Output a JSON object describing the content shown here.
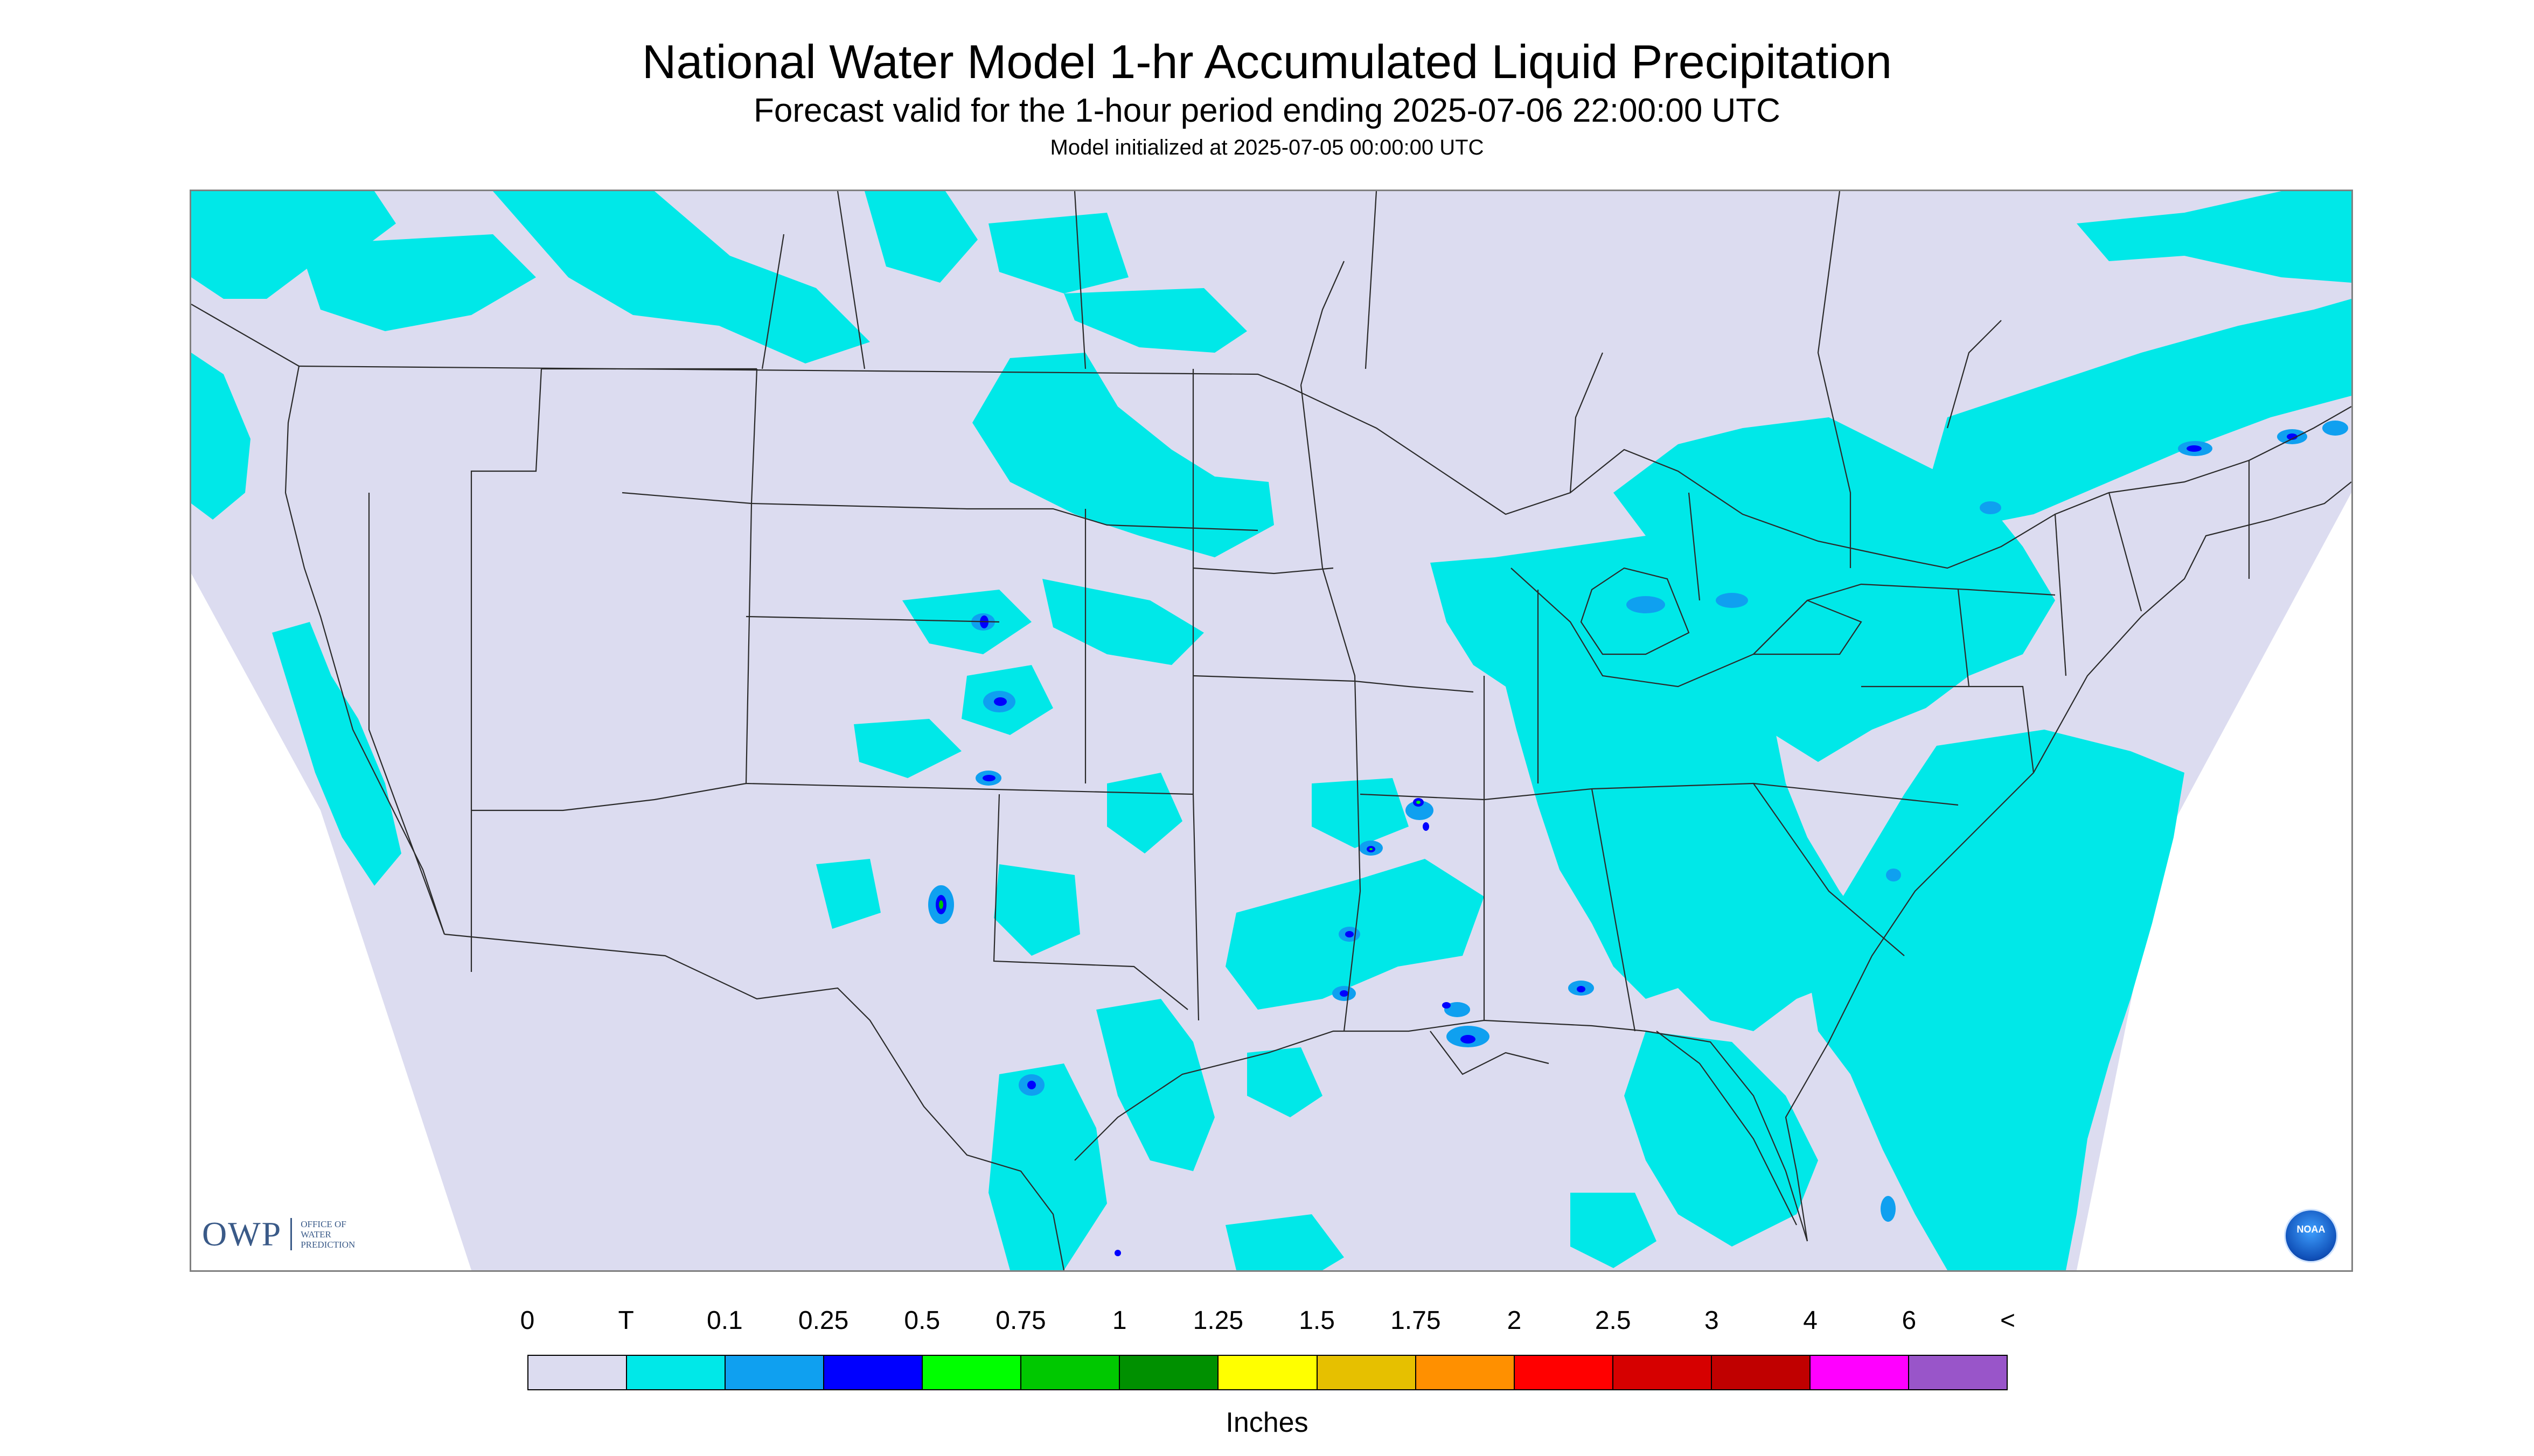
{
  "title": "National Water Model 1-hr Accumulated Liquid Precipitation",
  "subtitle": "Forecast valid for the 1-hour period ending 2025-07-06 22:00:00 UTC",
  "init_line": "Model initialized at 2025-07-05 00:00:00 UTC",
  "logo_owp": {
    "abbr": "OWP",
    "full": "OFFICE OF WATER PREDICTION"
  },
  "logo_noaa": "NOAA",
  "legend": {
    "unit": "Inches",
    "ticks": [
      "0",
      "T",
      "0.1",
      "0.25",
      "0.5",
      "0.75",
      "1",
      "1.25",
      "1.5",
      "1.75",
      "2",
      "2.5",
      "3",
      "4",
      "6",
      "<"
    ],
    "colors": [
      "#dcdcf0",
      "#00e8e8",
      "#0fa0f0",
      "#0000ff",
      "#00ff00",
      "#00c800",
      "#009000",
      "#ffff00",
      "#e6c000",
      "#ff9000",
      "#ff0000",
      "#d60000",
      "#c00000",
      "#ff00ff",
      "#9955c9"
    ]
  },
  "colors": {
    "no_data": "#ffffff",
    "background_zero": "#dcdcf0",
    "trace": "#00e8e8",
    "boundaries": "#2a2a2a"
  }
}
